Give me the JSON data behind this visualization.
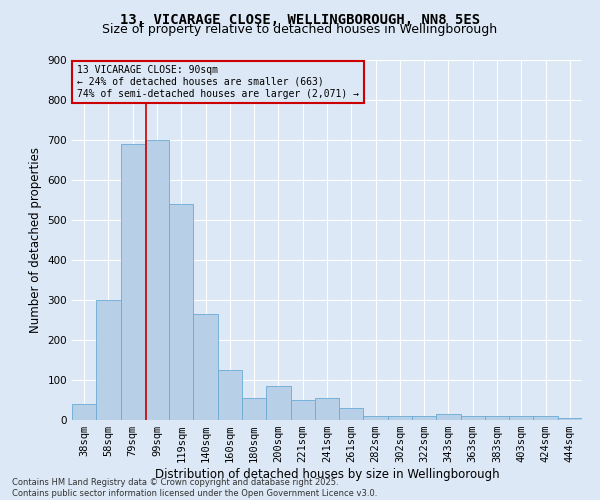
{
  "title": "13, VICARAGE CLOSE, WELLINGBOROUGH, NN8 5ES",
  "subtitle": "Size of property relative to detached houses in Wellingborough",
  "xlabel": "Distribution of detached houses by size in Wellingborough",
  "ylabel": "Number of detached properties",
  "footer_line1": "Contains HM Land Registry data © Crown copyright and database right 2025.",
  "footer_line2": "Contains public sector information licensed under the Open Government Licence v3.0.",
  "categories": [
    "38sqm",
    "58sqm",
    "79sqm",
    "99sqm",
    "119sqm",
    "140sqm",
    "160sqm",
    "180sqm",
    "200sqm",
    "221sqm",
    "241sqm",
    "261sqm",
    "282sqm",
    "302sqm",
    "322sqm",
    "343sqm",
    "363sqm",
    "383sqm",
    "403sqm",
    "424sqm",
    "444sqm"
  ],
  "values": [
    40,
    300,
    690,
    700,
    540,
    265,
    125,
    55,
    85,
    50,
    55,
    30,
    10,
    10,
    10,
    15,
    10,
    10,
    10,
    10,
    5
  ],
  "bar_color": "#b8cfe8",
  "bar_edgecolor": "#6aaad4",
  "bar_linewidth": 0.6,
  "background_color": "#dce8f5",
  "grid_color": "#ffffff",
  "ylim": [
    0,
    900
  ],
  "yticks": [
    0,
    100,
    200,
    300,
    400,
    500,
    600,
    700,
    800,
    900
  ],
  "annotation_text": "13 VICARAGE CLOSE: 90sqm\n← 24% of detached houses are smaller (663)\n74% of semi-detached houses are larger (2,071) →",
  "annotation_box_color": "#cc0000",
  "vline_x_index": 2.55,
  "vline_color": "#cc0000",
  "title_fontsize": 10,
  "subtitle_fontsize": 9,
  "tick_fontsize": 7.5,
  "ylabel_fontsize": 8.5,
  "xlabel_fontsize": 8.5,
  "annot_fontsize": 7.0
}
